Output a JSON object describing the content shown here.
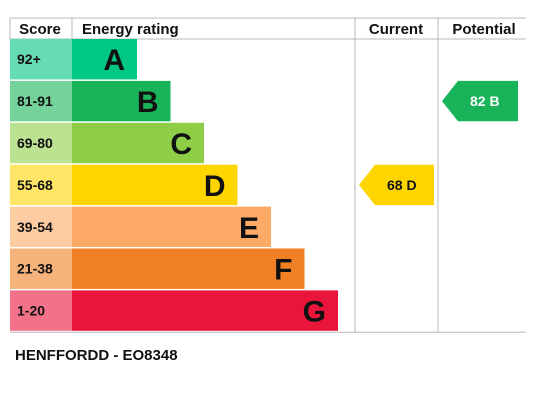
{
  "chart_data": {
    "type": "table",
    "headers": {
      "score": "Score",
      "rating": "Energy rating",
      "current": "Current",
      "potential": "Potential"
    },
    "bands": [
      {
        "score": "92+",
        "letter": "A",
        "color": "#00c781",
        "score_color": "#66dcb3"
      },
      {
        "score": "81-91",
        "letter": "B",
        "color": "#19b459",
        "score_color": "#75d29b"
      },
      {
        "score": "69-80",
        "letter": "C",
        "color": "#8dce46",
        "score_color": "#bbe290"
      },
      {
        "score": "55-68",
        "letter": "D",
        "color": "#ffd500",
        "score_color": "#ffe666"
      },
      {
        "score": "39-54",
        "letter": "E",
        "color": "#fcaa65",
        "score_color": "#fdcca3"
      },
      {
        "score": "21-38",
        "letter": "F",
        "color": "#ef8023",
        "score_color": "#f5b37b"
      },
      {
        "score": "1-20",
        "letter": "G",
        "color": "#e9153b",
        "score_color": "#f27389"
      }
    ],
    "current": {
      "value": 68,
      "letter": "D",
      "color": "#ffd500",
      "text_color": "#111111"
    },
    "potential": {
      "value": 82,
      "letter": "B",
      "color": "#19b459",
      "text_color": "#ffffff"
    }
  },
  "footer": {
    "reference": "HENFFORDD - EO8348"
  }
}
